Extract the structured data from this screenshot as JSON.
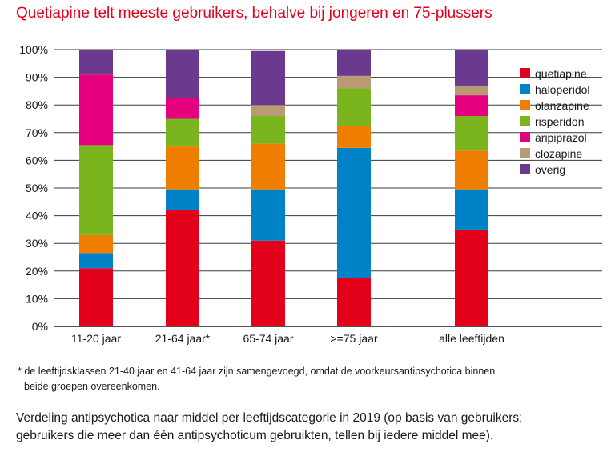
{
  "title": "Quetiapine telt meeste gebruikers, behalve bij jongeren en 75-plussers",
  "footnote": {
    "line1": "* de leeftijdsklassen 21-40 jaar en 41-64 jaar zijn samengevoegd, omdat de voorkeursantipsychotica binnen",
    "line2": "beide groepen overeenkomen."
  },
  "caption": {
    "line1": "Verdeling antipsychotica naar middel per leeftijdscategorie in 2019 (op basis van gebruikers;",
    "line2": "gebruikers die meer dan één antipsychoticum gebruikten, tellen bij iedere middel mee)."
  },
  "chart_data": {
    "type": "bar",
    "stacked": true,
    "title": "Quetiapine telt meeste gebruikers, behalve bij jongeren en 75-plussers",
    "xlabel": "",
    "ylabel": "",
    "ylim": [
      0,
      100
    ],
    "yticks": [
      "0%",
      "10%",
      "20%",
      "30%",
      "40%",
      "50%",
      "60%",
      "70%",
      "80%",
      "90%",
      "100%"
    ],
    "grid": true,
    "legend_position": "right",
    "categories": [
      "11-20 jaar",
      "21-64 jaar*",
      "65-74 jaar",
      ">=75 jaar",
      "alle leeftijden"
    ],
    "series": [
      {
        "name": "quetiapine",
        "color": "#e2001a",
        "values": [
          21,
          42,
          31,
          17.5,
          35
        ]
      },
      {
        "name": "haloperidol",
        "color": "#0082c8",
        "values": [
          5.5,
          7.5,
          18.5,
          47,
          14.5
        ]
      },
      {
        "name": "olanzapine",
        "color": "#ef7d00",
        "values": [
          6.5,
          15.5,
          16.5,
          8,
          14
        ]
      },
      {
        "name": "risperidon",
        "color": "#7ab51d",
        "values": [
          32.5,
          10,
          10,
          13.5,
          12.5
        ]
      },
      {
        "name": "aripiprazol",
        "color": "#e5007d",
        "values": [
          25.5,
          7.5,
          0,
          0,
          7.5
        ]
      },
      {
        "name": "clozapine",
        "color": "#b89b72",
        "values": [
          0,
          0,
          4,
          4.5,
          3.5
        ]
      },
      {
        "name": "overig",
        "color": "#6b3a8e",
        "values": [
          9,
          17.5,
          19.5,
          9.5,
          13
        ]
      }
    ]
  }
}
